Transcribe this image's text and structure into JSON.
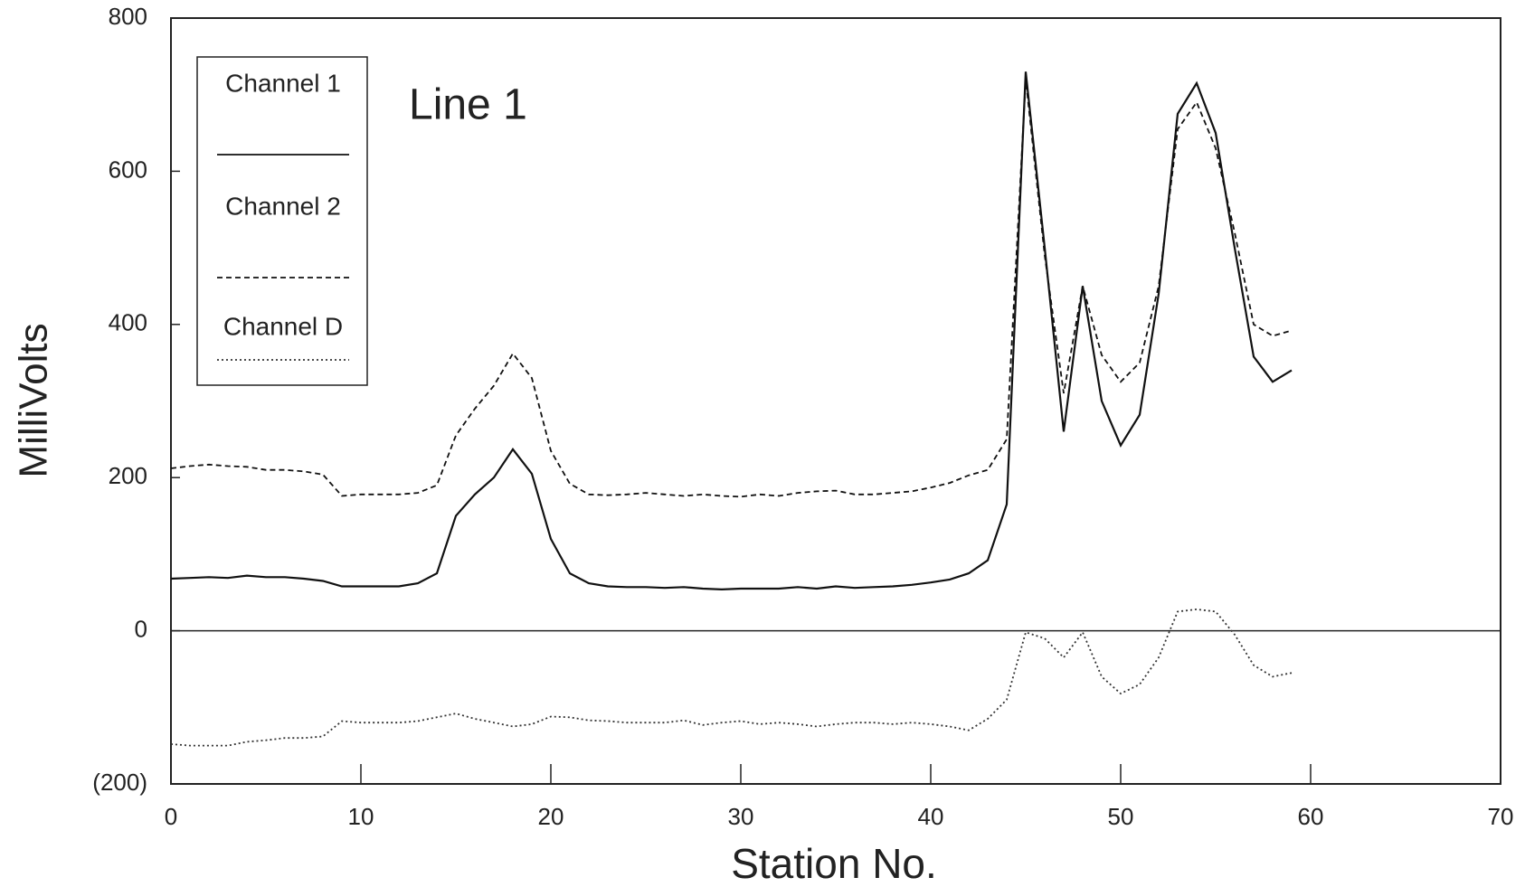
{
  "chart_data": {
    "type": "line",
    "annotation": "Line 1",
    "x_label": "Station No.",
    "y_label": "MilliVolts",
    "x": [
      0,
      1,
      2,
      3,
      4,
      5,
      6,
      7,
      8,
      9,
      10,
      11,
      12,
      13,
      14,
      15,
      16,
      17,
      18,
      19,
      20,
      21,
      22,
      23,
      24,
      25,
      26,
      27,
      28,
      29,
      30,
      31,
      32,
      33,
      34,
      35,
      36,
      37,
      38,
      39,
      40,
      41,
      42,
      43,
      44,
      45,
      46,
      47,
      48,
      49,
      50,
      51,
      52,
      53,
      54,
      55,
      56,
      57,
      58,
      59
    ],
    "series": [
      {
        "name": "Channel 1",
        "color": "#111111",
        "style": "solid",
        "values": [
          68,
          69,
          70,
          69,
          72,
          70,
          70,
          68,
          65,
          58,
          58,
          58,
          58,
          62,
          75,
          150,
          178,
          200,
          237,
          205,
          120,
          75,
          62,
          58,
          57,
          57,
          56,
          57,
          55,
          54,
          55,
          55,
          55,
          57,
          55,
          58,
          56,
          57,
          58,
          60,
          63,
          67,
          75,
          92,
          165,
          730,
          500,
          260,
          450,
          300,
          242,
          282,
          440,
          675,
          715,
          650,
          500,
          358,
          325,
          340
        ]
      },
      {
        "name": "Channel 2",
        "color": "#111111",
        "style": "dashed",
        "values": [
          212,
          215,
          217,
          215,
          214,
          210,
          210,
          208,
          204,
          176,
          178,
          178,
          178,
          180,
          190,
          255,
          290,
          320,
          362,
          330,
          235,
          192,
          178,
          177,
          178,
          180,
          178,
          176,
          178,
          176,
          175,
          178,
          176,
          180,
          182,
          183,
          178,
          178,
          180,
          182,
          187,
          193,
          203,
          210,
          250,
          720,
          490,
          310,
          450,
          360,
          325,
          350,
          450,
          655,
          690,
          630,
          520,
          400,
          385,
          392
        ]
      },
      {
        "name": "Channel D",
        "color": "#333333",
        "style": "dotted",
        "values": [
          -148,
          -150,
          -150,
          -150,
          -145,
          -143,
          -140,
          -140,
          -138,
          -118,
          -120,
          -120,
          -120,
          -118,
          -113,
          -108,
          -115,
          -120,
          -125,
          -122,
          -112,
          -113,
          -117,
          -118,
          -120,
          -120,
          -120,
          -117,
          -123,
          -120,
          -118,
          -122,
          -120,
          -122,
          -125,
          -122,
          -120,
          -120,
          -122,
          -120,
          -122,
          -125,
          -130,
          -115,
          -90,
          -2,
          -10,
          -35,
          -2,
          -60,
          -82,
          -70,
          -35,
          25,
          28,
          25,
          -5,
          -45,
          -60,
          -55
        ]
      }
    ],
    "xlim": [
      0,
      70
    ],
    "xticks": [
      0,
      10,
      20,
      30,
      40,
      50,
      60,
      70
    ],
    "ylim": [
      -200,
      800
    ],
    "yticks": [
      {
        "value": -200,
        "label": "(200)"
      },
      0,
      200,
      400,
      600,
      800
    ],
    "zero_line": true,
    "grid": false,
    "legend": "upper left"
  }
}
